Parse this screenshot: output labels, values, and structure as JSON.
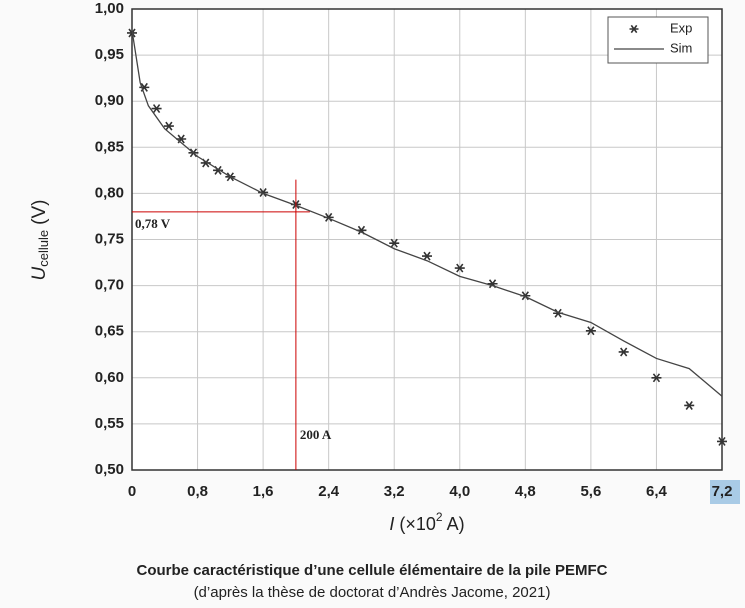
{
  "chart_data": {
    "type": "line",
    "caption": "Courbe caractéristique d’une cellule élémentaire de la pile PEMFC",
    "subcaption": "(d’après la thèse de doctorat d’Andrès Jacome, 2021)",
    "xlabel": {
      "main": "I",
      "unit": "(×10",
      "sup": "2",
      "end": " A)"
    },
    "ylabel": {
      "main": "U",
      "sub": "cellule",
      "unit": "(V)"
    },
    "xlim": [
      0,
      7.2
    ],
    "ylim": [
      0.5,
      1.0
    ],
    "xticks": [
      0,
      {
        "value": 0.8,
        "label": "0,8"
      },
      {
        "value": 1.6,
        "label": "1,6"
      },
      {
        "value": 2.4,
        "label": "2,4"
      },
      {
        "value": 3.2,
        "label": "3,2"
      },
      {
        "value": 4.0,
        "label": "4,0"
      },
      {
        "value": 4.8,
        "label": "4,8"
      },
      {
        "value": 5.6,
        "label": "5,6"
      },
      {
        "value": 6.4,
        "label": "6,4"
      },
      {
        "value": 7.2,
        "label": "7,2"
      }
    ],
    "yticks": [
      {
        "value": 0.5,
        "label": "0,50"
      },
      {
        "value": 0.55,
        "label": "0,55"
      },
      {
        "value": 0.6,
        "label": "0,60"
      },
      {
        "value": 0.65,
        "label": "0,65"
      },
      {
        "value": 0.7,
        "label": "0,70"
      },
      {
        "value": 0.75,
        "label": "0,75"
      },
      {
        "value": 0.8,
        "label": "0,80"
      },
      {
        "value": 0.85,
        "label": "0,85"
      },
      {
        "value": 0.9,
        "label": "0,90"
      },
      {
        "value": 0.95,
        "label": "0,95"
      },
      {
        "value": 1.0,
        "label": "1,00"
      }
    ],
    "grid": true,
    "legend": "top-right",
    "series": [
      {
        "name": "Exp",
        "style": "asterisk",
        "color": "#333333",
        "x": [
          0,
          0.15,
          0.3,
          0.45,
          0.6,
          0.75,
          0.9,
          1.05,
          1.2,
          1.6,
          2.0,
          2.4,
          2.8,
          3.2,
          3.6,
          4.0,
          4.4,
          4.8,
          5.2,
          5.6,
          6.0,
          6.4,
          6.8,
          7.2
        ],
        "values": [
          0.974,
          0.915,
          0.892,
          0.873,
          0.859,
          0.844,
          0.833,
          0.825,
          0.818,
          0.801,
          0.788,
          0.774,
          0.76,
          0.746,
          0.732,
          0.719,
          0.702,
          0.689,
          0.67,
          0.651,
          0.628,
          0.6,
          0.57,
          0.531
        ]
      },
      {
        "name": "Sim",
        "style": "line",
        "color": "#444444",
        "x": [
          0,
          0.1,
          0.2,
          0.4,
          0.8,
          1.2,
          1.6,
          2.0,
          2.4,
          2.8,
          3.2,
          3.6,
          4.0,
          4.4,
          4.8,
          5.2,
          5.6,
          6.0,
          6.4,
          6.8,
          7.2
        ],
        "values": [
          0.977,
          0.92,
          0.895,
          0.87,
          0.84,
          0.818,
          0.8,
          0.787,
          0.773,
          0.758,
          0.74,
          0.727,
          0.71,
          0.7,
          0.688,
          0.671,
          0.66,
          0.64,
          0.621,
          0.61,
          0.58
        ]
      }
    ],
    "reference_lines": [
      {
        "axis": "y",
        "value": 0.78,
        "label": "0,78 V",
        "color": "#cc0000"
      },
      {
        "axis": "x",
        "value": 2.0,
        "label": "200 A",
        "color": "#cc0000"
      }
    ]
  }
}
